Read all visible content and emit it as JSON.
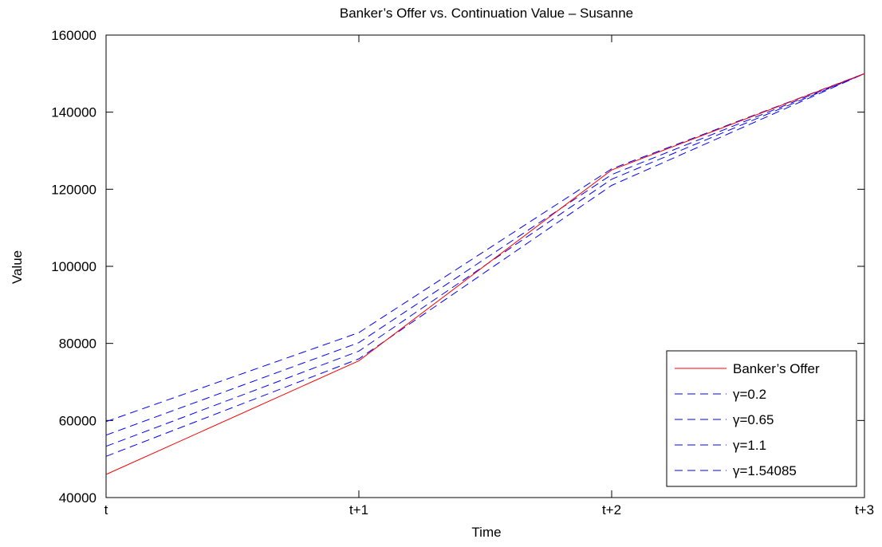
{
  "chart_data": {
    "type": "line",
    "title": "Banker’s Offer vs. Continuation Value – Susanne",
    "xlabel": "Time",
    "ylabel": "Value",
    "categories": [
      "t",
      "t+1",
      "t+2",
      "t+3"
    ],
    "ylim": [
      40000,
      160000
    ],
    "yticks": [
      "40000",
      "60000",
      "80000",
      "100000",
      "120000",
      "140000",
      "160000"
    ],
    "grid": false,
    "legend_position": "bottom-right",
    "series": [
      {
        "name": "Banker’s Offer",
        "values": [
          46000,
          75500,
          125000,
          150000
        ],
        "color": "#ff0000",
        "dash": false
      },
      {
        "name": "γ=0.2",
        "values": [
          59700,
          82800,
          125300,
          150000
        ],
        "color": "#0000ff",
        "dash": true
      },
      {
        "name": "γ=0.65",
        "values": [
          56200,
          80200,
          123800,
          150000
        ],
        "color": "#0000ff",
        "dash": true
      },
      {
        "name": "γ=1.1",
        "values": [
          53300,
          78000,
          122600,
          150000
        ],
        "color": "#0000ff",
        "dash": true
      },
      {
        "name": "γ=1.54085",
        "values": [
          50700,
          76000,
          121000,
          150000
        ],
        "color": "#0000ff",
        "dash": true
      }
    ]
  }
}
